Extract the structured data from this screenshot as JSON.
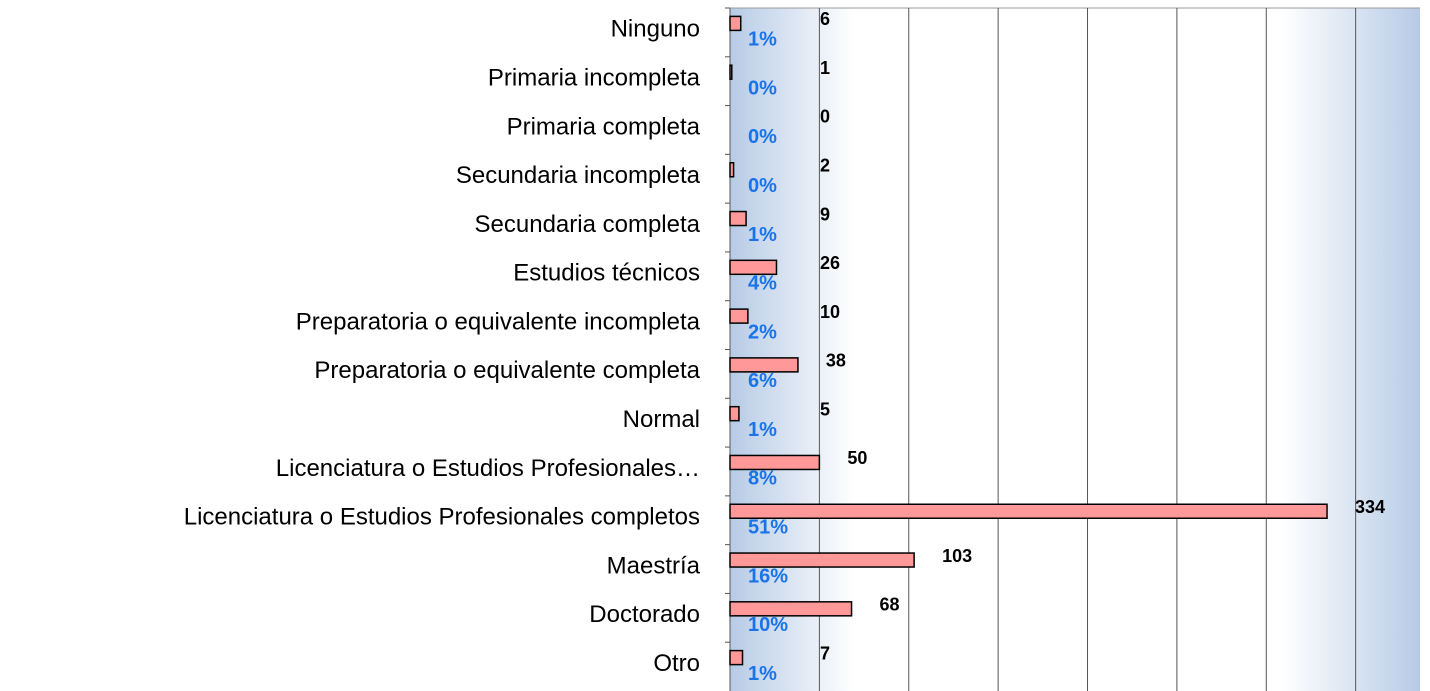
{
  "chart_data": {
    "type": "barh",
    "categories": [
      "Ninguno",
      "Primaria incompleta",
      "Primaria completa",
      "Secundaria incompleta",
      "Secundaria completa",
      "Estudios técnicos",
      "Preparatoria o equivalente incompleta",
      "Preparatoria o equivalente completa",
      "Normal",
      "Licenciatura o Estudios Profesionales…",
      "Licenciatura o Estudios Profesionales completos",
      "Maestría",
      "Doctorado",
      "Otro"
    ],
    "values": [
      6,
      1,
      0,
      2,
      9,
      26,
      10,
      38,
      5,
      50,
      334,
      103,
      68,
      7
    ],
    "percent_labels": [
      "1%",
      "0%",
      "0%",
      "0%",
      "1%",
      "4%",
      "2%",
      "6%",
      "1%",
      "8%",
      "51%",
      "16%",
      "10%",
      "1%"
    ],
    "color": "#ff9999",
    "xlim": [
      0,
      386
    ],
    "xticks": [
      50,
      100,
      150,
      200,
      250,
      300,
      350
    ],
    "grid": true
  }
}
